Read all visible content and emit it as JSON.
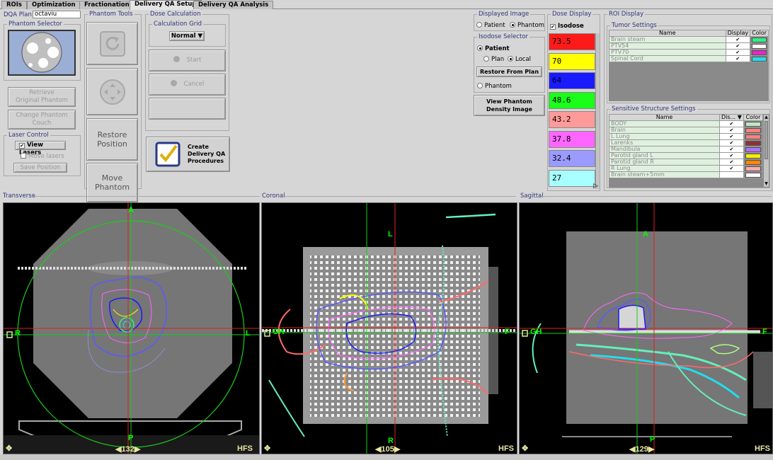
{
  "tabs": [
    {
      "label": "ROIs",
      "active": false
    },
    {
      "label": "Optimization",
      "active": false
    },
    {
      "label": "Fractionation",
      "active": false
    },
    {
      "label": "Delivery QA Setup",
      "active": true
    },
    {
      "label": "Delivery QA Analysis",
      "active": false
    }
  ],
  "dqa_plan": {
    "label": "DQA Plan:",
    "value": "octaviu"
  },
  "phantom_selector": {
    "title": "Phantom Selector"
  },
  "left_buttons": {
    "retrieve": "Retrieve\nOriginal Phantom",
    "change_couch": "Change Phantom\nCouch"
  },
  "laser_control": {
    "title": "Laser Control",
    "view_lasers": "View Lasers",
    "view_lasers_checked": true,
    "move_lasers": "Move lasers",
    "move_lasers_checked": false,
    "save_position": "Save Position"
  },
  "phantom_tools": {
    "title": "Phantom Tools",
    "restore_position": "Restore\nPosition",
    "move_phantom": "Move\nPhantom"
  },
  "dose_calculation": {
    "title": "Dose Calculation",
    "grid_title": "Calculation Grid",
    "grid_value": "Normal",
    "start": "Start",
    "cancel": "Cancel"
  },
  "create_dqa": {
    "label": "Create\nDelivery QA\nProcedures"
  },
  "displayed_image": {
    "title": "Displayed Image",
    "patient": "Patient",
    "phantom": "Phantom",
    "selected": "Phantom"
  },
  "isodose_selector": {
    "title": "Isodose Selector",
    "patient": "Patient",
    "plan": "Plan",
    "local": "Local",
    "restore_from_plan": "Restore From Plan",
    "phantom": "Phantom",
    "view_density": "View Phantom\nDensity Image"
  },
  "dose_display": {
    "title": "Dose Display",
    "isodose_label": "Isodose",
    "isodose_checked": true,
    "levels": [
      {
        "value": "73.5",
        "color": "#ff1a1a"
      },
      {
        "value": "70",
        "color": "#ffff00"
      },
      {
        "value": "64",
        "color": "#1a1aff"
      },
      {
        "value": "48.6",
        "color": "#1aff1a"
      },
      {
        "value": "43.2",
        "color": "#ff9a9a"
      },
      {
        "value": "37.8",
        "color": "#ff66ff"
      },
      {
        "value": "32.4",
        "color": "#9a9aff"
      },
      {
        "value": "27",
        "color": "#a8ffff"
      }
    ]
  },
  "roi_display": {
    "title": "ROI Display",
    "tumor_title": "Tumor Settings",
    "tumor_headers": [
      "Name",
      "Display",
      "Color"
    ],
    "tumors": [
      {
        "name": "Brain steam",
        "display": true,
        "color": "#33ee88"
      },
      {
        "name": "PTV54",
        "display": true,
        "color": "#ffffff"
      },
      {
        "name": "PTV70",
        "display": true,
        "color": "#ee22cc"
      },
      {
        "name": "Spinal Cord",
        "display": true,
        "color": "#22ddee"
      }
    ],
    "sensitive_title": "Sensitive Structure Settings",
    "sensitive_headers": [
      "Name",
      "Dis...",
      "Color"
    ],
    "sensitive": [
      {
        "name": "BODY",
        "display": true,
        "color": "#bfe8bf"
      },
      {
        "name": "Brain",
        "display": true,
        "color": "#ff8080"
      },
      {
        "name": "L Lung",
        "display": true,
        "color": "#ff8080"
      },
      {
        "name": "Larenks",
        "display": true,
        "color": "#8a3333"
      },
      {
        "name": "Mandibula",
        "display": true,
        "color": "#b070ff"
      },
      {
        "name": "Parotid gland L",
        "display": true,
        "color": "#ffee00"
      },
      {
        "name": "Parotid gland R",
        "display": true,
        "color": "#ff8800"
      },
      {
        "name": "R Lung",
        "display": true,
        "color": "#ffaaaa"
      },
      {
        "name": "Brain steam+5mm",
        "display": false,
        "color": "#ffffff"
      }
    ]
  },
  "views": {
    "transverse": {
      "title": "Transverse",
      "top": "A",
      "bottom": "P",
      "left": "R",
      "right": "L",
      "slice": "132",
      "orient": "HFS"
    },
    "coronal": {
      "title": "Coronal",
      "top": "L",
      "bottom": "R",
      "left": "GH",
      "right": "F",
      "slice": "105",
      "orient": "HFS"
    },
    "sagittal": {
      "title": "Sagittal",
      "top": "A",
      "bottom": "P",
      "left": "GH",
      "right": "F",
      "slice": "129",
      "orient": "HFS"
    }
  }
}
